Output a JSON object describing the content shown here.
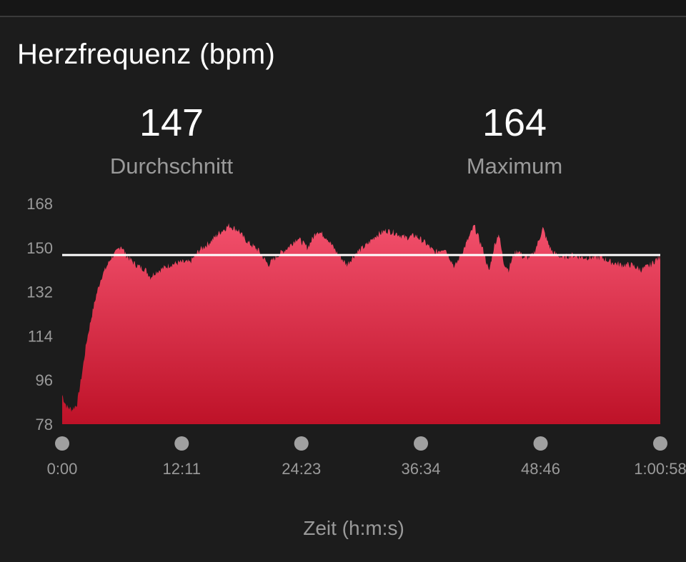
{
  "header": {
    "title": "Herzfrequenz (bpm)"
  },
  "stats": {
    "average_value": "147",
    "average_label": "Durchschnitt",
    "max_value": "164",
    "max_label": "Maximum"
  },
  "colors": {
    "background": "#1c1c1c",
    "area_top": "#f2506c",
    "area_bottom": "#be1228",
    "average_line": "#ffffff",
    "muted_text": "#9a9a9a",
    "marker": "#a0a0a0"
  },
  "chart_data": {
    "type": "area",
    "xlabel": "Zeit (h:m:s)",
    "ylabel": "",
    "ylim": [
      78,
      168
    ],
    "yticks": [
      168,
      150,
      132,
      114,
      96,
      78
    ],
    "ytick_labels": [
      "168",
      "150",
      "132",
      "114",
      "96",
      "78"
    ],
    "xlim": [
      0,
      3658
    ],
    "xticks": [
      0,
      731,
      1463,
      2194,
      2926,
      3658
    ],
    "xtick_labels": [
      "0:00",
      "12:11",
      "24:23",
      "36:34",
      "48:46",
      "1:00:58"
    ],
    "average_line": 147,
    "series": [
      {
        "x_seconds": [
          0,
          15,
          30,
          60,
          90,
          120,
          150,
          180,
          210,
          240,
          270,
          300,
          330,
          360,
          390,
          420,
          450,
          480,
          510,
          540,
          570,
          600,
          660,
          720,
          780,
          840,
          900,
          960,
          1020,
          1080,
          1110,
          1140,
          1200,
          1260,
          1320,
          1380,
          1440,
          1500,
          1560,
          1620,
          1680,
          1740,
          1800,
          1860,
          1920,
          1980,
          2040,
          2100,
          2160,
          2220,
          2280,
          2340,
          2400,
          2460,
          2520,
          2580,
          2610,
          2640,
          2670,
          2700,
          2730,
          2760,
          2790,
          2820,
          2850,
          2880,
          2910,
          2940,
          2970,
          3000,
          3060,
          3120,
          3180,
          3240,
          3300,
          3360,
          3420,
          3480,
          3540,
          3600,
          3630,
          3658
        ],
        "values": [
          90,
          87,
          85,
          84,
          86,
          98,
          112,
          122,
          131,
          138,
          142,
          146,
          148,
          151,
          147,
          145,
          143,
          142,
          141,
          138,
          140,
          141,
          143,
          144,
          144,
          149,
          152,
          156,
          159,
          157,
          154,
          152,
          149,
          143,
          147,
          150,
          154,
          150,
          157,
          154,
          148,
          143,
          148,
          151,
          155,
          157,
          156,
          154,
          155,
          152,
          148,
          150,
          142,
          150,
          159,
          148,
          140,
          150,
          156,
          144,
          141,
          147,
          149,
          146,
          146,
          147,
          152,
          158,
          152,
          148,
          146,
          147,
          146,
          146,
          146,
          144,
          143,
          143,
          141,
          143,
          145,
          146
        ]
      }
    ]
  }
}
